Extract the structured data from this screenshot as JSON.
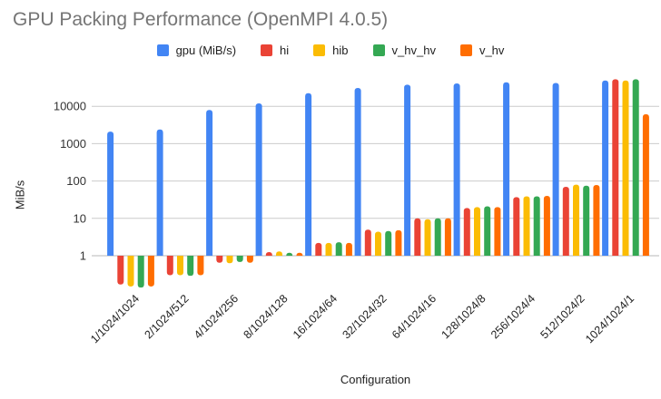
{
  "chart_data": {
    "type": "bar",
    "title": "GPU Packing Performance (OpenMPI 4.0.5)",
    "xlabel": "Configuration",
    "ylabel": "MiB/s",
    "y_scale": "log",
    "y_ticks": [
      1,
      10,
      100,
      1000,
      10000
    ],
    "ylim": [
      0.1,
      60000
    ],
    "grid": true,
    "legend_position": "top",
    "categories": [
      "1/1024/1024",
      "2/1024/512",
      "4/1024/256",
      "8/1024/128",
      "16/1024/64",
      "32/1024/32",
      "64/1024/16",
      "128/1024/8",
      "256/1024/4",
      "512/1024/2",
      "1024/1024/1"
    ],
    "series": [
      {
        "name": "gpu (MiB/s)",
        "color": "#4285f4",
        "values": [
          2100,
          2400,
          8000,
          12000,
          22500,
          31000,
          38000,
          41000,
          44000,
          42000,
          49000
        ]
      },
      {
        "name": "hi",
        "color": "#ea4335",
        "values": [
          0.17,
          0.3,
          0.65,
          1.25,
          2.2,
          5.0,
          10,
          19,
          37,
          70,
          53000
        ]
      },
      {
        "name": "hib",
        "color": "#fbbc04",
        "values": [
          0.15,
          0.3,
          0.63,
          1.3,
          2.2,
          4.4,
          9.5,
          20,
          39,
          80,
          49000
        ]
      },
      {
        "name": "v_hv_hv",
        "color": "#34a853",
        "values": [
          0.14,
          0.29,
          0.68,
          1.2,
          2.3,
          4.6,
          10,
          21,
          39,
          75,
          53000
        ]
      },
      {
        "name": "v_hv",
        "color": "#ff6d01",
        "values": [
          0.15,
          0.3,
          0.65,
          1.2,
          2.2,
          4.8,
          10,
          20,
          40,
          78,
          6100
        ]
      }
    ]
  },
  "colors": {
    "title_text": "#757575",
    "axis_text": "#222222",
    "tick_text": "#333333",
    "gridline": "#cccccc",
    "baseline": "#b7b7b7"
  }
}
